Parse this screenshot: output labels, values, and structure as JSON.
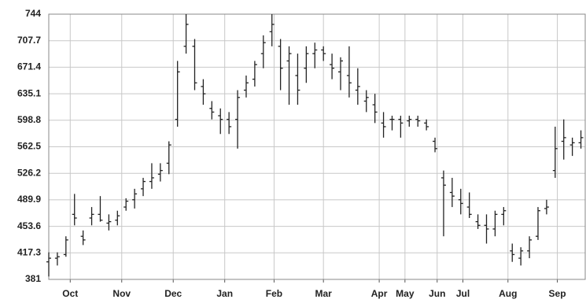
{
  "chart_data": {
    "type": "ohlc",
    "color": "#222222",
    "grid": true,
    "x": [
      0,
      4,
      8,
      12,
      16,
      20,
      24,
      28,
      32,
      36,
      40,
      44,
      48,
      52,
      56,
      60,
      64,
      68,
      72,
      76,
      80,
      84,
      88,
      92,
      96,
      100,
      104,
      108,
      112,
      116,
      120,
      124,
      128,
      132,
      136,
      140,
      144,
      148,
      152,
      156,
      160,
      164,
      168,
      172,
      176,
      180,
      184,
      188,
      192,
      196,
      200,
      204,
      208,
      212,
      216,
      220,
      224,
      228,
      232,
      236,
      240,
      244,
      248
    ],
    "open": [
      405,
      410,
      415,
      470,
      440,
      465,
      470,
      458,
      462,
      480,
      490,
      505,
      515,
      525,
      540,
      600,
      700,
      700,
      645,
      615,
      605,
      600,
      600,
      640,
      655,
      690,
      720,
      700,
      680,
      660,
      670,
      690,
      695,
      675,
      665,
      660,
      640,
      625,
      620,
      595,
      600,
      600,
      598,
      600,
      595,
      570,
      520,
      500,
      490,
      480,
      460,
      455,
      450,
      470,
      420,
      410,
      420,
      440,
      478,
      530,
      570,
      565,
      568
    ],
    "high": [
      418,
      418,
      440,
      498,
      448,
      480,
      495,
      470,
      475,
      492,
      505,
      520,
      540,
      540,
      570,
      680,
      744,
      710,
      655,
      625,
      615,
      610,
      640,
      660,
      680,
      715,
      744,
      710,
      700,
      690,
      700,
      705,
      700,
      690,
      685,
      700,
      670,
      640,
      635,
      610,
      605,
      605,
      605,
      605,
      600,
      575,
      530,
      520,
      505,
      500,
      470,
      470,
      475,
      480,
      430,
      425,
      440,
      480,
      490,
      590,
      600,
      575,
      585
    ],
    "low": [
      385,
      400,
      412,
      455,
      428,
      455,
      460,
      448,
      455,
      475,
      478,
      495,
      505,
      515,
      525,
      590,
      690,
      640,
      620,
      600,
      580,
      580,
      560,
      630,
      645,
      670,
      700,
      640,
      620,
      620,
      650,
      670,
      680,
      655,
      640,
      630,
      620,
      610,
      595,
      575,
      585,
      575,
      590,
      590,
      585,
      555,
      440,
      480,
      470,
      465,
      450,
      430,
      440,
      455,
      405,
      400,
      410,
      435,
      470,
      520,
      545,
      550,
      560
    ],
    "close": [
      410,
      412,
      435,
      465,
      435,
      470,
      462,
      460,
      468,
      488,
      498,
      515,
      520,
      530,
      565,
      665,
      730,
      650,
      635,
      610,
      600,
      590,
      630,
      650,
      675,
      705,
      730,
      670,
      690,
      640,
      690,
      695,
      690,
      670,
      680,
      650,
      645,
      630,
      610,
      590,
      600,
      595,
      600,
      598,
      590,
      560,
      510,
      495,
      485,
      470,
      455,
      450,
      470,
      475,
      415,
      420,
      435,
      475,
      480,
      560,
      575,
      568,
      575
    ],
    "xlim": [
      0,
      250
    ],
    "xticks": [
      {
        "value": 10,
        "label": "Oct"
      },
      {
        "value": 34,
        "label": "Nov"
      },
      {
        "value": 58,
        "label": "Dec"
      },
      {
        "value": 82,
        "label": "Jan"
      },
      {
        "value": 105,
        "label": "Feb"
      },
      {
        "value": 128,
        "label": "Mar"
      },
      {
        "value": 154,
        "label": "Apr"
      },
      {
        "value": 166,
        "label": "May"
      },
      {
        "value": 181,
        "label": "Jun"
      },
      {
        "value": 193,
        "label": "Jul"
      },
      {
        "value": 214,
        "label": "Aug"
      },
      {
        "value": 237,
        "label": "Sep"
      }
    ],
    "ylim": [
      381,
      744
    ],
    "yticks": [
      381,
      417.3,
      453.6,
      489.9,
      526.2,
      562.5,
      598.8,
      635.1,
      671.4,
      707.7,
      744
    ]
  }
}
